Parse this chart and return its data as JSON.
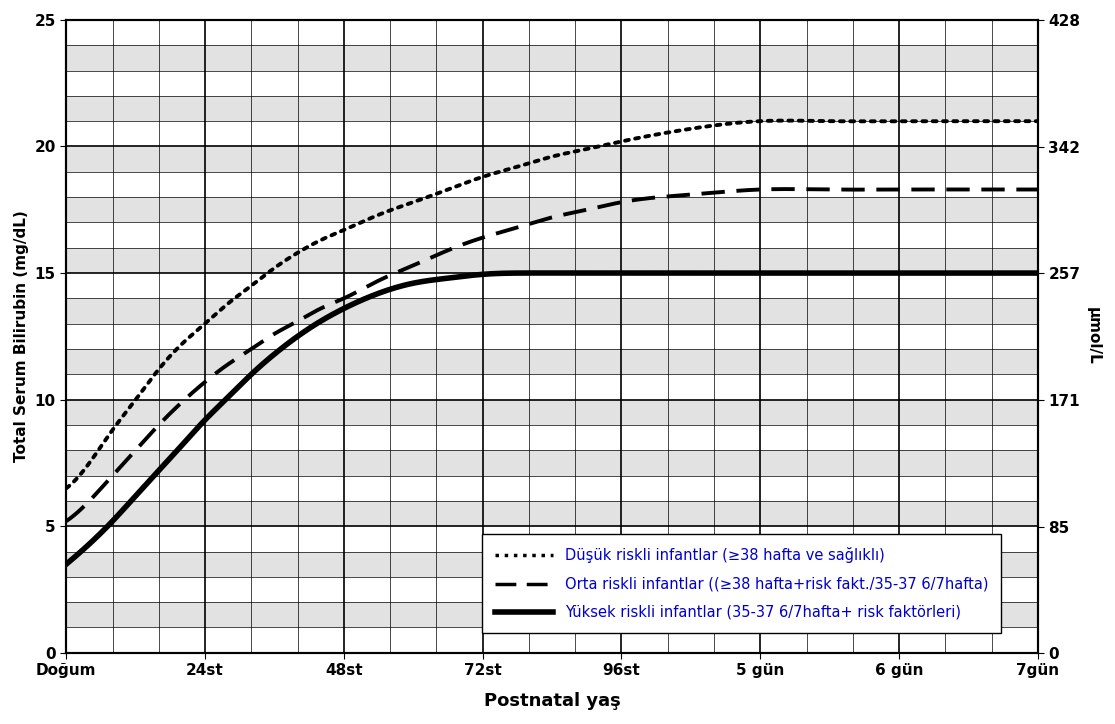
{
  "xlabel": "Postnatal yaş",
  "ylabel_left": "Total Serum Bilirubin (mg/dL)",
  "ylabel_right": "μmol/L",
  "xlim": [
    0,
    168
  ],
  "ylim_left": [
    0,
    25
  ],
  "ylim_right": [
    0,
    428
  ],
  "xtick_positions": [
    0,
    24,
    48,
    72,
    96,
    120,
    144,
    168
  ],
  "xtick_labels": [
    "Doğum",
    "24st",
    "48st",
    "72st",
    "96st",
    "5 gün",
    "6 gün",
    "7gün"
  ],
  "ytick_left": [
    0,
    5,
    10,
    15,
    20,
    25
  ],
  "ytick_right_values": [
    0,
    85,
    171,
    257,
    342,
    428
  ],
  "right_tick_labels": [
    "0",
    "85",
    "171",
    "257",
    "342",
    "428"
  ],
  "legend_entries": [
    "Düşük riskli infantlar (≥38 hafta ve sağlıklı)",
    "Orta riskli infantlar ((≥38 hafta+risk fakt./35-37 6/7hafta)",
    "Yüksek riskli infantlar (35-37 6/7hafta+ risk faktörleri)"
  ],
  "background_color": "#ffffff",
  "low_risk_x": [
    0,
    4,
    8,
    12,
    16,
    20,
    24,
    28,
    32,
    36,
    40,
    44,
    48,
    54,
    60,
    66,
    72,
    78,
    84,
    90,
    96,
    108,
    120,
    132,
    144,
    156,
    168
  ],
  "low_risk_y": [
    6.5,
    7.5,
    8.8,
    10.0,
    11.2,
    12.2,
    13.0,
    13.8,
    14.5,
    15.2,
    15.8,
    16.3,
    16.7,
    17.3,
    17.8,
    18.3,
    18.8,
    19.2,
    19.6,
    19.9,
    20.2,
    20.7,
    21.0,
    21.0,
    21.0,
    21.0,
    21.0
  ],
  "mid_risk_x": [
    0,
    4,
    8,
    12,
    16,
    20,
    24,
    28,
    32,
    36,
    40,
    44,
    48,
    54,
    60,
    66,
    72,
    78,
    84,
    90,
    96,
    108,
    120,
    132,
    144,
    156,
    168
  ],
  "mid_risk_y": [
    5.2,
    6.0,
    7.0,
    8.0,
    9.0,
    9.9,
    10.7,
    11.4,
    12.0,
    12.6,
    13.1,
    13.6,
    14.0,
    14.7,
    15.3,
    15.9,
    16.4,
    16.8,
    17.2,
    17.5,
    17.8,
    18.1,
    18.3,
    18.3,
    18.3,
    18.3,
    18.3
  ],
  "high_risk_x": [
    0,
    4,
    8,
    12,
    16,
    20,
    24,
    28,
    32,
    36,
    40,
    44,
    48,
    54,
    60,
    66,
    72,
    78,
    84,
    90,
    96,
    108,
    120,
    132,
    144,
    156,
    168
  ],
  "high_risk_y": [
    3.5,
    4.3,
    5.2,
    6.2,
    7.2,
    8.2,
    9.2,
    10.1,
    11.0,
    11.8,
    12.5,
    13.1,
    13.6,
    14.2,
    14.6,
    14.8,
    14.95,
    15.0,
    15.0,
    15.0,
    15.0,
    15.0,
    15.0,
    15.0,
    15.0,
    15.0,
    15.0
  ],
  "gray_band_rows": [
    1,
    3,
    5,
    7,
    9,
    11,
    13,
    15,
    17,
    19,
    21,
    23
  ],
  "minor_y_step": 1,
  "minor_x_step": 8
}
